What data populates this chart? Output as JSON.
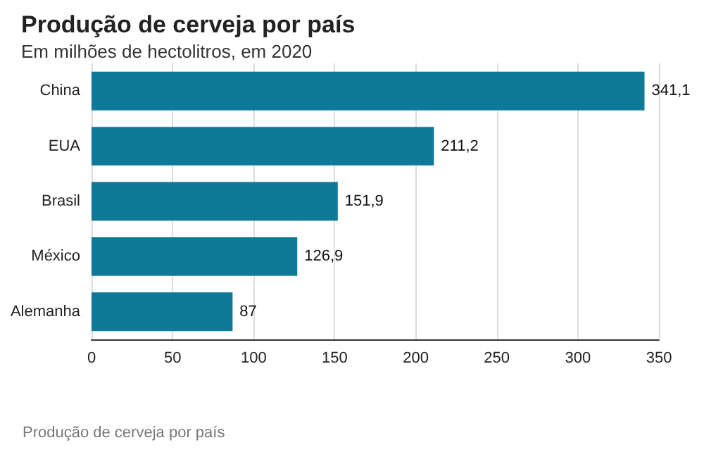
{
  "chart_data": {
    "type": "bar",
    "orientation": "horizontal",
    "title": "Produção de cerveja por país",
    "subtitle": "Em milhões de hectolitros, em 2020",
    "categories": [
      "China",
      "EUA",
      "Brasil",
      "México",
      "Alemanha"
    ],
    "values": [
      341.1,
      211.2,
      151.9,
      126.9,
      87
    ],
    "value_labels": [
      "341,1",
      "211,2",
      "151,9",
      "126,9",
      "87"
    ],
    "color": "#0e7a98",
    "xlim": [
      0,
      350
    ],
    "xticks": [
      0,
      50,
      100,
      150,
      200,
      250,
      300,
      350
    ],
    "grid": "x",
    "annotations": [
      "Produção de cerveja por país"
    ]
  }
}
